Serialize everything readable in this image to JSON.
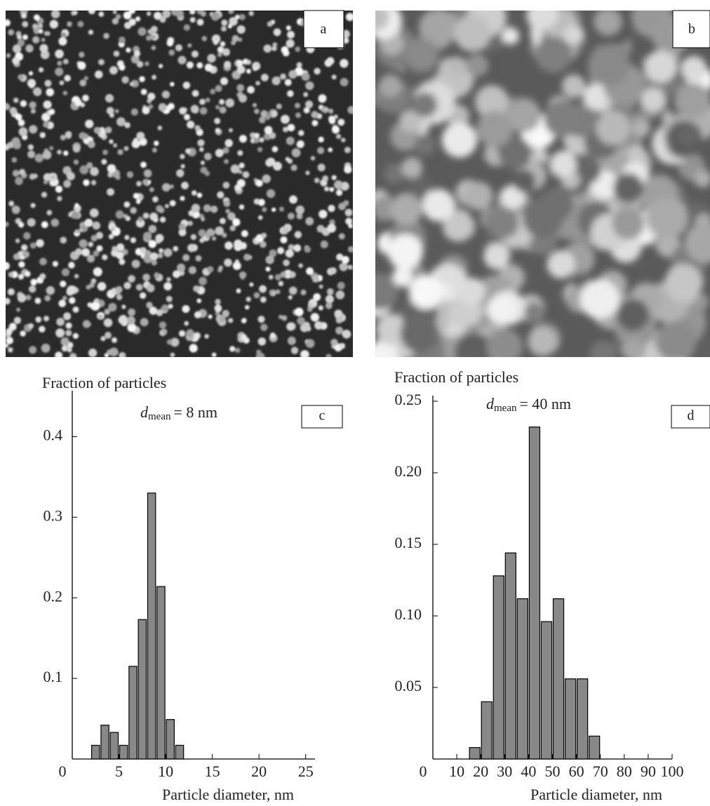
{
  "panels": [
    {
      "label": "a"
    },
    {
      "label": "b"
    }
  ],
  "chart_data": [
    {
      "type": "histogram",
      "panel": "c",
      "ylabel": "Fraction of particles",
      "xlabel": "Particle diameter, nm",
      "annotation": {
        "symbol": "d",
        "subscript": "mean",
        "text": "= 8 nm"
      },
      "bins": [
        2,
        3,
        4,
        5,
        6,
        7,
        8,
        9,
        10,
        11,
        12
      ],
      "values": [
        0.017,
        0.042,
        0.033,
        0.017,
        0.115,
        0.173,
        0.33,
        0.214,
        0.049,
        0.017
      ],
      "color": "#888888",
      "xlim": [
        0,
        26
      ],
      "xticks": [
        0,
        5,
        10,
        15,
        20,
        25
      ],
      "ylim": [
        0,
        0.45
      ],
      "yticks": [
        0.1,
        0.2,
        0.3,
        0.4
      ]
    },
    {
      "type": "histogram",
      "panel": "d",
      "ylabel": "Fraction of particles",
      "xlabel": "Particle diameter, nm",
      "annotation": {
        "symbol": "d",
        "subscript": "mean",
        "text": "= 40 nm"
      },
      "bins": [
        15,
        20,
        25,
        30,
        35,
        40,
        45,
        50,
        55,
        60,
        65,
        70
      ],
      "values": [
        0.008,
        0.04,
        0.128,
        0.144,
        0.112,
        0.232,
        0.096,
        0.112,
        0.056,
        0.056,
        0.016
      ],
      "color": "#888888",
      "xlim": [
        0,
        100
      ],
      "xticks": [
        0,
        10,
        20,
        30,
        40,
        50,
        60,
        70,
        80,
        90,
        100
      ],
      "ylim": [
        0,
        0.25
      ],
      "yticks": [
        0.05,
        {
          "value": 0.1,
          "label": "0.10"
        },
        0.15,
        {
          "value": 0.2,
          "label": "0.20"
        },
        0.25
      ]
    }
  ]
}
